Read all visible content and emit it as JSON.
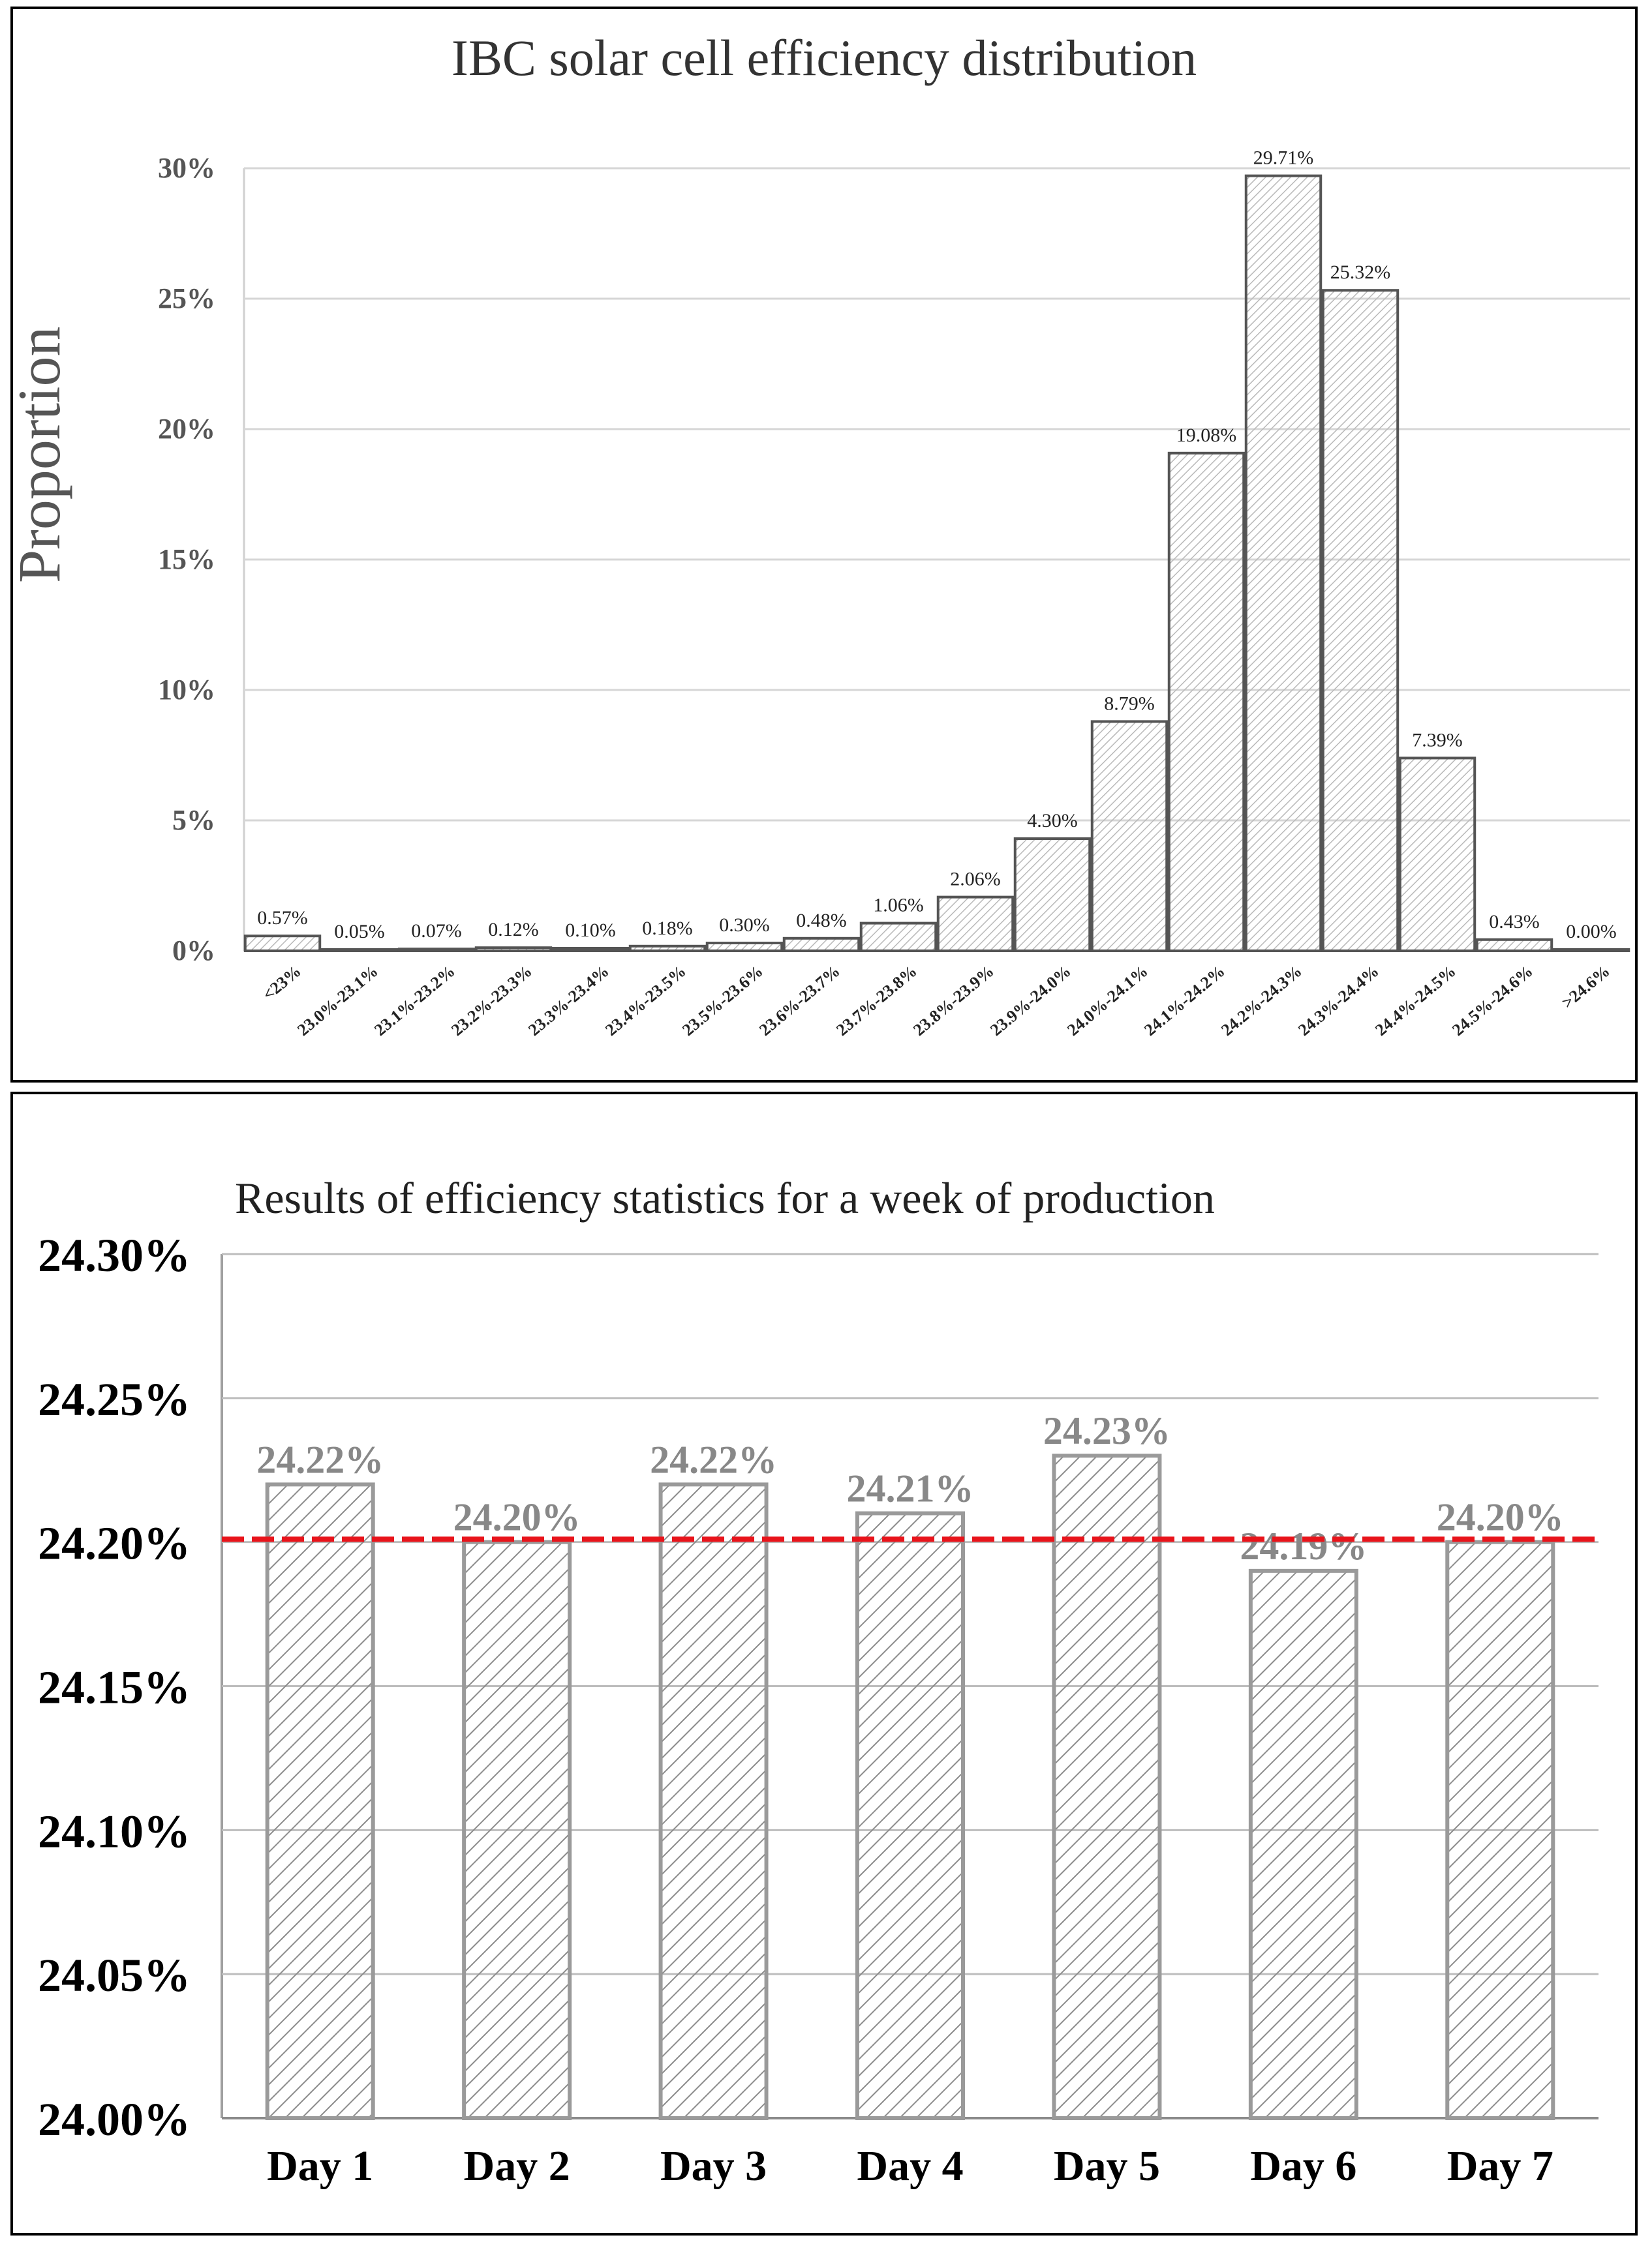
{
  "chart_data": [
    {
      "type": "bar",
      "title": "IBC solar cell efficiency distribution",
      "ylabel": "Proportion",
      "xlabel": "",
      "ylim": [
        0,
        30
      ],
      "yticks": [
        "0%",
        "5%",
        "10%",
        "15%",
        "20%",
        "25%",
        "30%"
      ],
      "categories": [
        "<23%",
        "23.0%-23.1%",
        "23.1%-23.2%",
        "23.2%-23.3%",
        "23.3%-23.4%",
        "23.4%-23.5%",
        "23.5%-23.6%",
        "23.6%-23.7%",
        "23.7%-23.8%",
        "23.8%-23.9%",
        "23.9%-24.0%",
        "24.0%-24.1%",
        "24.1%-24.2%",
        "24.2%-24.3%",
        "24.3%-24.4%",
        "24.4%-24.5%",
        "24.5%-24.6%",
        ">24.6%"
      ],
      "values": [
        0.57,
        0.05,
        0.07,
        0.12,
        0.1,
        0.18,
        0.3,
        0.48,
        1.06,
        2.06,
        4.3,
        8.79,
        19.08,
        29.71,
        25.32,
        7.39,
        0.43,
        0.0
      ],
      "data_labels": [
        "0.57%",
        "0.05%",
        "0.07%",
        "0.12%",
        "0.10%",
        "0.18%",
        "0.30%",
        "0.48%",
        "1.06%",
        "2.06%",
        "4.30%",
        "8.79%",
        "19.08%",
        "29.71%",
        "25.32%",
        "7.39%",
        "0.43%",
        "0.00%"
      ]
    },
    {
      "type": "bar",
      "title": "Results of efficiency statistics for a week of production",
      "xlabel": "",
      "ylabel": "",
      "ylim": [
        24.0,
        24.3
      ],
      "yticks": [
        "24.00%",
        "24.05%",
        "24.10%",
        "24.15%",
        "24.20%",
        "24.25%",
        "24.30%"
      ],
      "categories": [
        "Day 1",
        "Day 2",
        "Day 3",
        "Day 4",
        "Day 5",
        "Day 6",
        "Day 7"
      ],
      "values": [
        24.22,
        24.2,
        24.22,
        24.21,
        24.23,
        24.19,
        24.2
      ],
      "data_labels": [
        "24.22%",
        "24.20%",
        "24.22%",
        "24.21%",
        "24.23%",
        "24.19%",
        "24.20%"
      ],
      "reference_line": {
        "value": 24.201,
        "color": "#e8141b",
        "style": "dashed"
      }
    }
  ],
  "colors": {
    "bar_stroke_top": "#555555",
    "bar_stroke_bottom": "#9a9a9a",
    "grid": "#d6d6d6",
    "axis_text_top": "#555555",
    "label_bottom": "#888888"
  }
}
